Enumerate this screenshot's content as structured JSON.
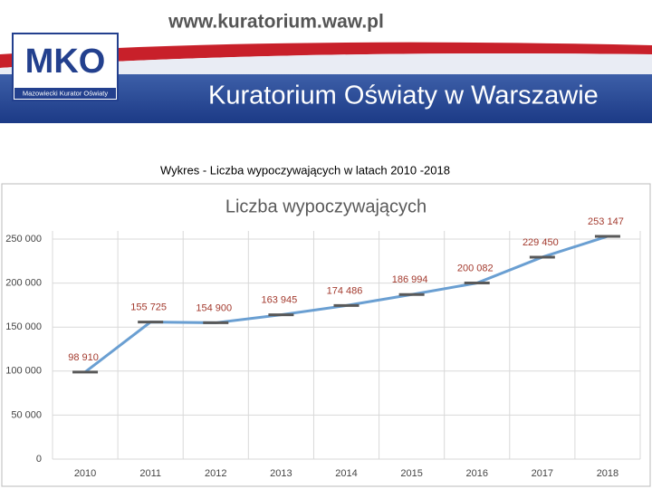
{
  "header": {
    "url": "www.kuratorium.waw.pl",
    "logo": "MKO",
    "logo_caption": "Mazowiecki Kurator Oświaty",
    "title": "Kuratorium Oświaty w Warszawie"
  },
  "caption": "Wykres -  Liczba wypoczywających w latach 2010 -2018",
  "chart_data": {
    "type": "line",
    "title": "Liczba wypoczywających",
    "categories": [
      "2010",
      "2011",
      "2012",
      "2013",
      "2014",
      "2015",
      "2016",
      "2017",
      "2018"
    ],
    "values": [
      98910,
      155725,
      154900,
      163945,
      174486,
      186994,
      200082,
      229450,
      253147
    ],
    "value_labels": [
      "98 910",
      "155 725",
      "154 900",
      "163 945",
      "174 486",
      "186 994",
      "200 082",
      "229 450",
      "253 147"
    ],
    "color": "#6a9fd2",
    "marker_color": "#595959",
    "label_color": "#a33a2e",
    "ylim": [
      0,
      250000
    ],
    "yticks": [
      0,
      {
        "value": 50000,
        "label": "50 000"
      },
      {
        "value": 100000,
        "label": "100 000"
      },
      {
        "value": 150000,
        "label": "150 000"
      },
      {
        "value": 200000,
        "label": "200 000"
      },
      {
        "value": 250000,
        "label": "250 000"
      }
    ],
    "grid": true
  }
}
